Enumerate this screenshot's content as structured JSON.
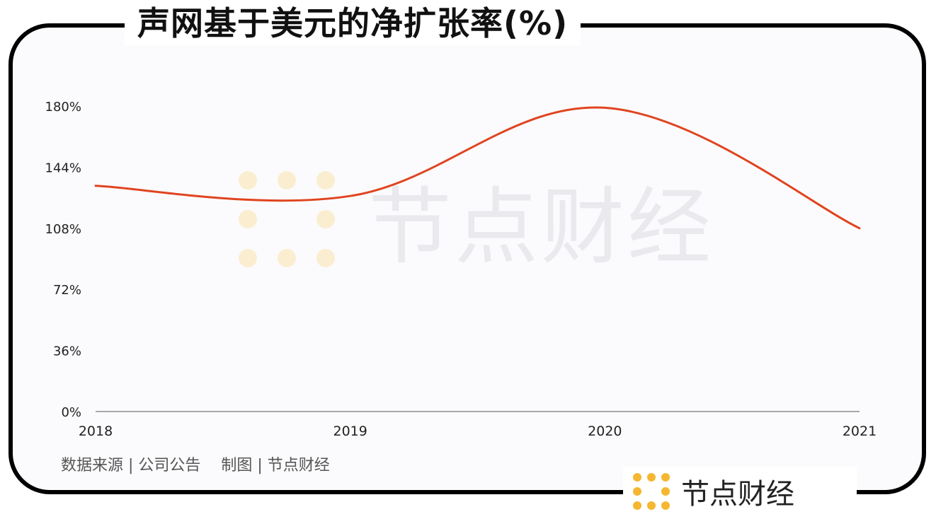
{
  "title": "声网基于美元的净扩张率(%)",
  "source_note": "数据来源 | 公司公告　 制图 | 节点财经",
  "brand": {
    "name": "节点财经",
    "logo_icon": "dotted-grid-logo-icon",
    "logo_color": "#f5b731"
  },
  "watermark": "节点财经",
  "colors": {
    "line": "#e0441f",
    "axis": "#555555",
    "tick_text": "#222222"
  },
  "chart_data": {
    "type": "line",
    "title": "声网基于美元的净扩张率(%)",
    "categories": [
      "2018",
      "2019",
      "2020",
      "2021"
    ],
    "series": [
      {
        "values": [
          133,
          127,
          179,
          108
        ]
      }
    ],
    "y_ticks": [
      "0%",
      "36%",
      "72%",
      "108%",
      "144%",
      "180%"
    ],
    "ylim": [
      0,
      180
    ],
    "xlabel": "",
    "ylabel": "",
    "grid": false,
    "smooth": true
  }
}
